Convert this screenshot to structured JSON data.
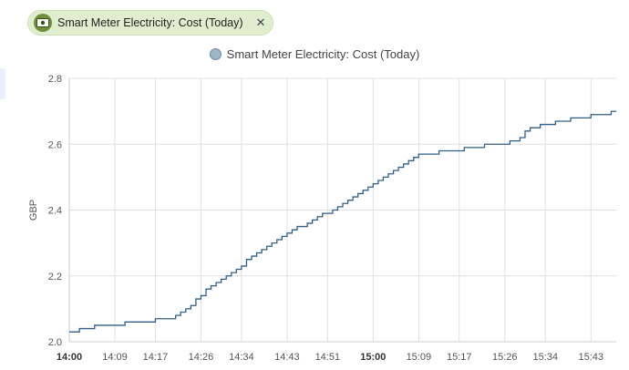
{
  "entity_chip": {
    "label": "Smart Meter Electricity: Cost (Today)",
    "icon": "cash-icon",
    "close": "✕"
  },
  "chart_data": {
    "type": "line",
    "title": "",
    "xlabel": "",
    "ylabel": "GBP",
    "ylim": [
      2.0,
      2.8
    ],
    "y_ticks": [
      "2.0",
      "2.2",
      "2.4",
      "2.6",
      "2.8"
    ],
    "x_ticks": [
      "14:00",
      "14:09",
      "14:17",
      "14:26",
      "14:34",
      "14:43",
      "14:51",
      "15:00",
      "15:09",
      "15:17",
      "15:26",
      "15:34",
      "15:43"
    ],
    "bold_ticks": [
      "14:00",
      "15:00"
    ],
    "xlim": [
      "14:00",
      "15:48"
    ],
    "grid": true,
    "legend_position": "top-center",
    "line_color": "#2f5f8a",
    "series": [
      {
        "name": "Smart Meter Electricity: Cost (Today)",
        "step": true,
        "points": [
          [
            "14:00",
            2.03
          ],
          [
            "14:02",
            2.04
          ],
          [
            "14:05",
            2.05
          ],
          [
            "14:11",
            2.06
          ],
          [
            "14:17",
            2.07
          ],
          [
            "14:21",
            2.08
          ],
          [
            "14:22",
            2.09
          ],
          [
            "14:23",
            2.1
          ],
          [
            "14:24",
            2.11
          ],
          [
            "14:25",
            2.12
          ],
          [
            "14:25",
            2.13
          ],
          [
            "14:26",
            2.14
          ],
          [
            "14:27",
            2.15
          ],
          [
            "14:27",
            2.16
          ],
          [
            "14:28",
            2.17
          ],
          [
            "14:29",
            2.18
          ],
          [
            "14:30",
            2.19
          ],
          [
            "14:31",
            2.2
          ],
          [
            "14:32",
            2.21
          ],
          [
            "14:33",
            2.22
          ],
          [
            "14:34",
            2.23
          ],
          [
            "14:35",
            2.24
          ],
          [
            "14:35",
            2.25
          ],
          [
            "14:36",
            2.26
          ],
          [
            "14:37",
            2.27
          ],
          [
            "14:38",
            2.28
          ],
          [
            "14:39",
            2.29
          ],
          [
            "14:40",
            2.3
          ],
          [
            "14:41",
            2.31
          ],
          [
            "14:42",
            2.32
          ],
          [
            "14:43",
            2.33
          ],
          [
            "14:44",
            2.34
          ],
          [
            "14:45",
            2.35
          ],
          [
            "14:47",
            2.36
          ],
          [
            "14:48",
            2.37
          ],
          [
            "14:49",
            2.38
          ],
          [
            "14:50",
            2.39
          ],
          [
            "14:52",
            2.4
          ],
          [
            "14:53",
            2.41
          ],
          [
            "14:54",
            2.42
          ],
          [
            "14:55",
            2.43
          ],
          [
            "14:56",
            2.44
          ],
          [
            "14:57",
            2.45
          ],
          [
            "14:58",
            2.46
          ],
          [
            "14:59",
            2.47
          ],
          [
            "15:00",
            2.48
          ],
          [
            "15:01",
            2.49
          ],
          [
            "15:02",
            2.5
          ],
          [
            "15:03",
            2.51
          ],
          [
            "15:04",
            2.52
          ],
          [
            "15:05",
            2.53
          ],
          [
            "15:06",
            2.54
          ],
          [
            "15:07",
            2.55
          ],
          [
            "15:08",
            2.56
          ],
          [
            "15:09",
            2.57
          ],
          [
            "15:13",
            2.58
          ],
          [
            "15:18",
            2.59
          ],
          [
            "15:22",
            2.6
          ],
          [
            "15:27",
            2.61
          ],
          [
            "15:29",
            2.62
          ],
          [
            "15:30",
            2.63
          ],
          [
            "15:30",
            2.64
          ],
          [
            "15:31",
            2.65
          ],
          [
            "15:33",
            2.66
          ],
          [
            "15:36",
            2.67
          ],
          [
            "15:39",
            2.68
          ],
          [
            "15:43",
            2.69
          ],
          [
            "15:47",
            2.7
          ],
          [
            "15:48",
            2.7
          ]
        ]
      }
    ]
  }
}
